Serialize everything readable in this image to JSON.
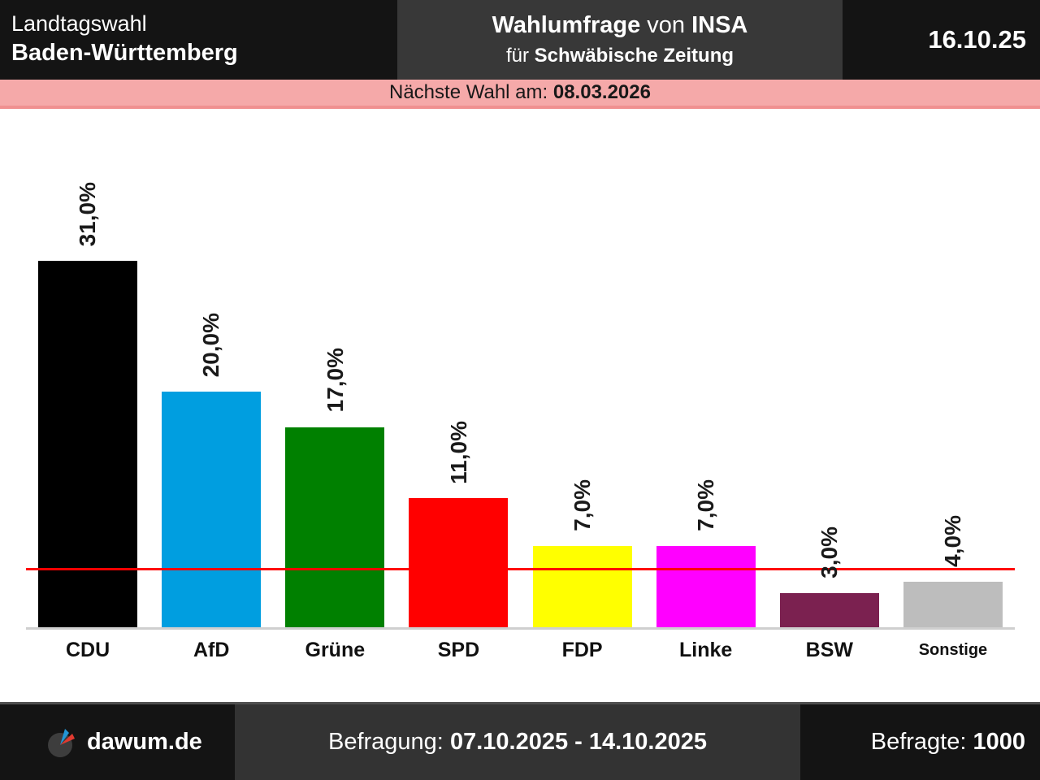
{
  "header": {
    "election_line1": "Landtagswahl",
    "election_line2": "Baden-Württemberg",
    "poll_title_word": "Wahlumfrage",
    "poll_title_von": "von",
    "poll_institute": "INSA",
    "poll_for_word": "für",
    "poll_client": "Schwäbische Zeitung",
    "publish_date": "16.10.25"
  },
  "banner": {
    "label": "Nächste Wahl am:",
    "next_election_date": "08.03.2026",
    "background": "#f5a9a9"
  },
  "chart_data": {
    "type": "bar",
    "title": "Wahlumfrage von INSA für Schwäbische Zeitung, Landtagswahl Baden-Württemberg",
    "categories": [
      "CDU",
      "AfD",
      "Grüne",
      "SPD",
      "FDP",
      "Linke",
      "BSW",
      "Sonstige"
    ],
    "values": [
      31.0,
      20.0,
      17.0,
      11.0,
      7.0,
      7.0,
      3.0,
      4.0
    ],
    "value_labels": [
      "31,0%",
      "20,0%",
      "17,0%",
      "11,0%",
      "7,0%",
      "7,0%",
      "3,0%",
      "4,0%"
    ],
    "colors": [
      "#000000",
      "#009ee0",
      "#008000",
      "#ff0000",
      "#ffff00",
      "#ff00ff",
      "#7b2150",
      "#bdbdbd"
    ],
    "unit": "%",
    "ylim": [
      0,
      43
    ],
    "grid": false,
    "legend": false,
    "threshold_line": {
      "value": 5.0,
      "color": "#ff0000"
    },
    "baseline_color": "#cfcfcf"
  },
  "footer": {
    "site": "dawum.de",
    "survey_label": "Befragung:",
    "survey_period": "07.10.2025 - 14.10.2025",
    "respondents_label": "Befragte:",
    "respondents_value": "1000"
  }
}
